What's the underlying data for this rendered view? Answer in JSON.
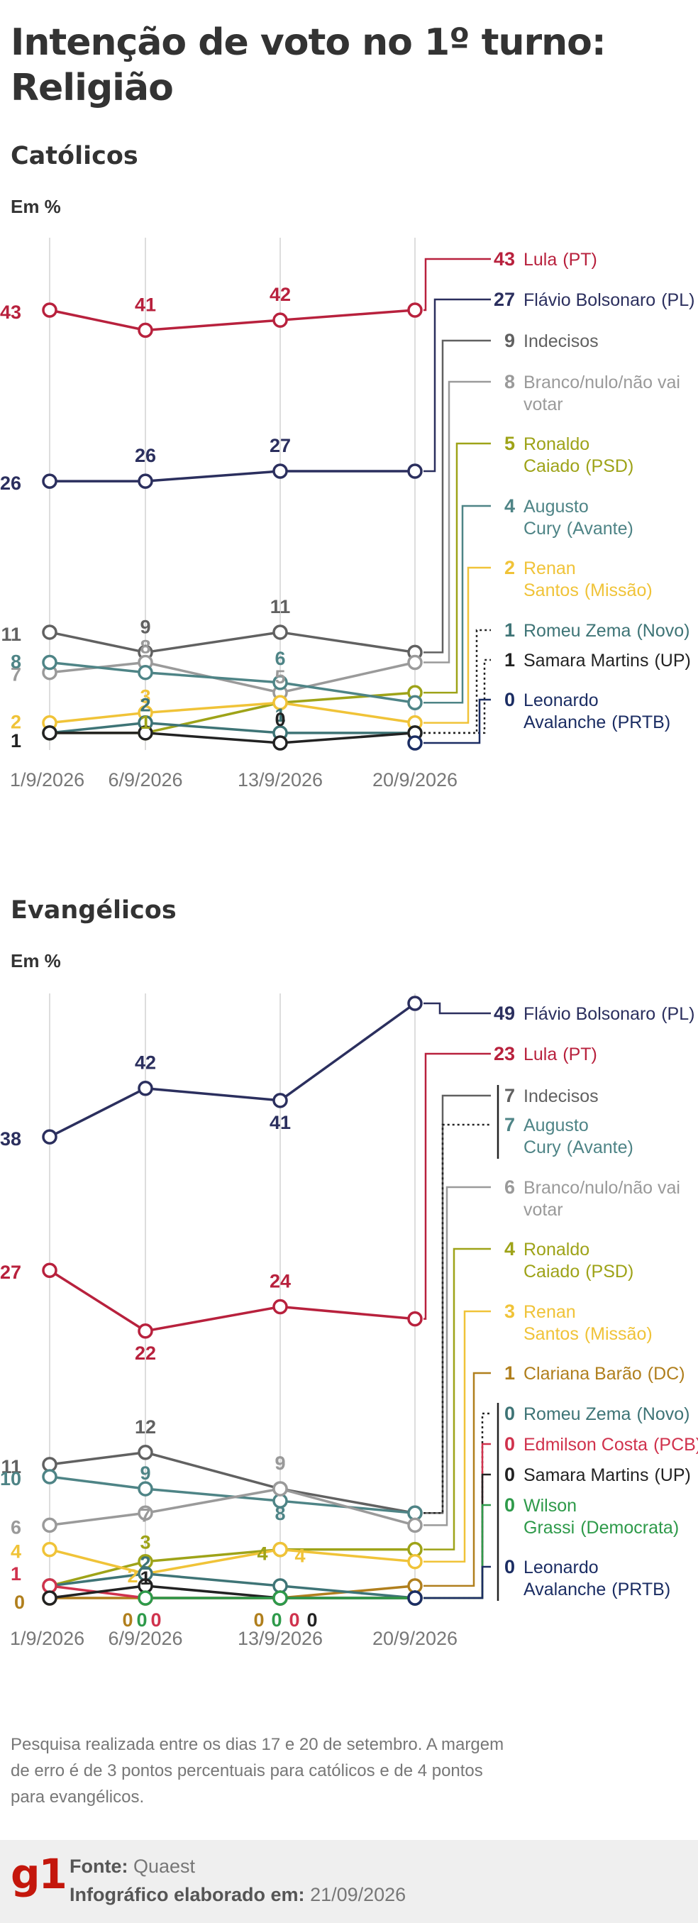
{
  "page": {
    "title": "Intenção de voto no 1º turno: Religião"
  },
  "colors": {
    "lula": "#b8213d",
    "flavio": "#2b2f5e",
    "indecisos": "#616161",
    "branco": "#9a9a9a",
    "caiado": "#9ea318",
    "cury": "#4e8486",
    "renan": "#f0c338",
    "zema": "#3e7476",
    "samara": "#222222",
    "avalanche": "#1b2d63",
    "clariana": "#b07f1d",
    "edmilson": "#d0324d",
    "grassi": "#2e9a4a",
    "grid": "#dddddd"
  },
  "chart_data": [
    {
      "type": "line",
      "title": "Católicos",
      "unit_label": "Em %",
      "x": [
        "1/9/2026",
        "6/9/2026",
        "13/9/2026",
        "20/9/2026"
      ],
      "series": [
        {
          "name": "Lula",
          "party": "(PT)",
          "values": [
            43,
            41,
            42,
            43
          ],
          "color": "#b8213d"
        },
        {
          "name": "Flávio Bolsonaro",
          "party": "(PL)",
          "values": [
            26,
            26,
            27,
            27
          ],
          "color": "#2b2f5e"
        },
        {
          "name": "Indecisos",
          "party": "",
          "values": [
            11,
            9,
            11,
            9
          ],
          "color": "#616161"
        },
        {
          "name": "Branco/nulo/não vai votar",
          "party": "",
          "values": [
            7,
            8,
            5,
            8
          ],
          "color": "#9a9a9a"
        },
        {
          "name": "Ronaldo Caiado",
          "party": "(PSD)",
          "values": [
            1,
            1,
            4,
            5
          ],
          "color": "#9ea318"
        },
        {
          "name": "Augusto Cury",
          "party": "(Avante)",
          "values": [
            8,
            7,
            6,
            4
          ],
          "color": "#4e8486"
        },
        {
          "name": "Renan Santos",
          "party": "(Missão)",
          "values": [
            2,
            3,
            4,
            2
          ],
          "color": "#f0c338"
        },
        {
          "name": "Romeu Zema",
          "party": "(Novo)",
          "values": [
            1,
            2,
            1,
            1
          ],
          "color": "#3e7476"
        },
        {
          "name": "Samara Martins",
          "party": "(UP)",
          "values": [
            1,
            1,
            0,
            1
          ],
          "color": "#222222"
        },
        {
          "name": "Leonardo Avalanche",
          "party": "(PRTB)",
          "values": [
            null,
            null,
            null,
            0
          ],
          "color": "#1b2d63"
        }
      ]
    },
    {
      "type": "line",
      "title": "Evangélicos",
      "unit_label": "Em %",
      "x": [
        "1/9/2026",
        "6/9/2026",
        "13/9/2026",
        "20/9/2026"
      ],
      "series": [
        {
          "name": "Flávio Bolsonaro",
          "party": "(PL)",
          "values": [
            38,
            42,
            41,
            49
          ],
          "color": "#2b2f5e"
        },
        {
          "name": "Lula",
          "party": "(PT)",
          "values": [
            27,
            22,
            24,
            23
          ],
          "color": "#b8213d"
        },
        {
          "name": "Indecisos",
          "party": "",
          "values": [
            11,
            12,
            9,
            7
          ],
          "color": "#616161"
        },
        {
          "name": "Augusto Cury",
          "party": "(Avante)",
          "values": [
            10,
            9,
            8,
            7
          ],
          "color": "#4e8486"
        },
        {
          "name": "Branco/nulo/não vai votar",
          "party": "",
          "values": [
            6,
            7,
            9,
            6
          ],
          "color": "#9a9a9a"
        },
        {
          "name": "Ronaldo Caiado",
          "party": "(PSD)",
          "values": [
            1,
            3,
            4,
            4
          ],
          "color": "#9ea318"
        },
        {
          "name": "Renan Santos",
          "party": "(Missão)",
          "values": [
            4,
            2,
            4,
            3
          ],
          "color": "#f0c338"
        },
        {
          "name": "Clariana Barão",
          "party": "(DC)",
          "values": [
            0,
            0,
            0,
            1
          ],
          "color": "#b07f1d"
        },
        {
          "name": "Romeu Zema",
          "party": "(Novo)",
          "values": [
            1,
            2,
            1,
            0
          ],
          "color": "#3e7476"
        },
        {
          "name": "Edmilson Costa",
          "party": "(PCB)",
          "values": [
            1,
            0,
            0,
            0
          ],
          "color": "#d0324d"
        },
        {
          "name": "Samara Martins",
          "party": "(UP)",
          "values": [
            0,
            1,
            0,
            0
          ],
          "color": "#222222"
        },
        {
          "name": "Wilson Grassi",
          "party": "(Democrata)",
          "values": [
            null,
            0,
            0,
            0
          ],
          "color": "#2e9a4a"
        },
        {
          "name": "Leonardo Avalanche",
          "party": "(PRTB)",
          "values": [
            null,
            null,
            null,
            0
          ],
          "color": "#1b2d63"
        }
      ]
    }
  ],
  "note": "Pesquisa realizada entre os dias 17 e 20 de setembro. A margem de erro é de 3 pontos percentuais para católicos e de 4 pontos para evangélicos.",
  "footer": {
    "logo": "g1",
    "source_label": "Fonte:",
    "source_value": "Quaest",
    "date_label": "Infográfico elaborado em:",
    "date_value": "21/09/2026"
  }
}
